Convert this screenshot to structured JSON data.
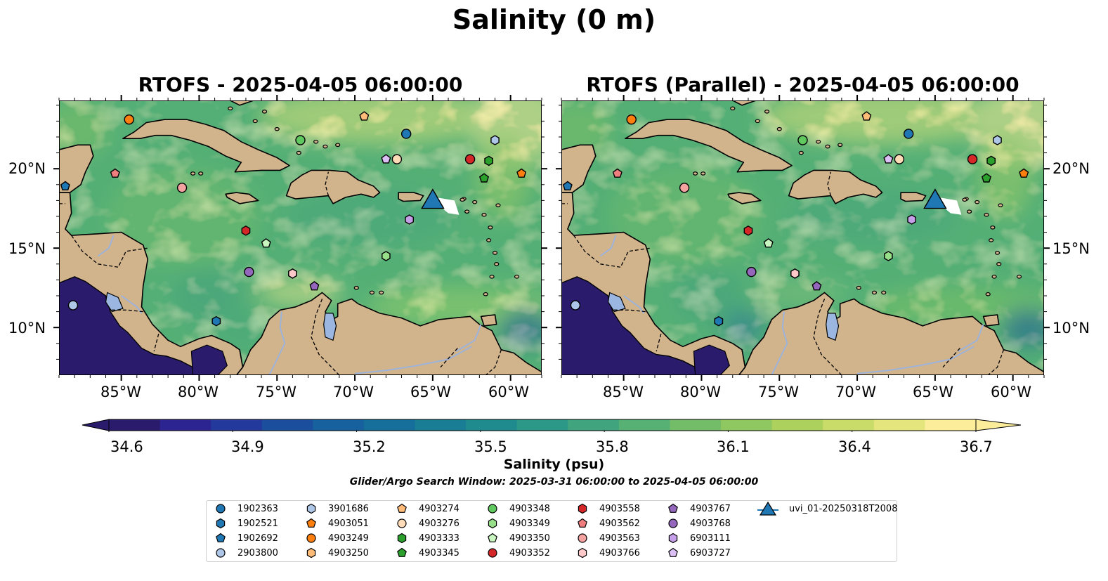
{
  "figure": {
    "title": "Salinity (0 m)",
    "panels": [
      {
        "title": "RTOFS - 2025-04-05 06:00:00"
      },
      {
        "title": "RTOFS (Parallel) - 2025-04-05 06:00:00"
      }
    ],
    "x_ticks": [
      "85°W",
      "80°W",
      "75°W",
      "70°W",
      "65°W",
      "60°W"
    ],
    "y_ticks": [
      "20°N",
      "15°N",
      "10°N"
    ],
    "search_window": "Glider/Argo Search Window: 2025-03-31 06:00:00 to 2025-04-05 06:00:00"
  },
  "colorbar": {
    "label": "Salinity (psu)",
    "ticks": [
      "34.6",
      "34.9",
      "35.2",
      "35.5",
      "35.8",
      "36.1",
      "36.4",
      "36.7"
    ],
    "min": 34.6,
    "max": 36.7,
    "colors": [
      "#2a1b6c",
      "#2c2490",
      "#23399b",
      "#1b4f9e",
      "#17619e",
      "#156f9a",
      "#187d95",
      "#208b8f",
      "#2c9988",
      "#40a57e",
      "#57b174",
      "#73bd68",
      "#8fc760",
      "#acd15c",
      "#c9db68",
      "#e5e57e",
      "#fbed9a"
    ]
  },
  "map_colors": {
    "land": "#d2b48c",
    "water_low": "#2a1b6c",
    "water_mid": "#4caa7a",
    "water_high": "#fbed9a"
  },
  "legend": [
    {
      "id": "1902363",
      "marker": "circle",
      "color": "#1f77b4"
    },
    {
      "id": "1902521",
      "marker": "hexagon",
      "color": "#1f77b4"
    },
    {
      "id": "1902692",
      "marker": "pentagon",
      "color": "#1f77b4"
    },
    {
      "id": "2903800",
      "marker": "circle",
      "color": "#aec7e8"
    },
    {
      "id": "3901686",
      "marker": "hexagon",
      "color": "#aec7e8"
    },
    {
      "id": "4903051",
      "marker": "pentagon",
      "color": "#ff7f0e"
    },
    {
      "id": "4903249",
      "marker": "circle",
      "color": "#ff7f0e"
    },
    {
      "id": "4903250",
      "marker": "hexagon",
      "color": "#ffbb78"
    },
    {
      "id": "4903274",
      "marker": "pentagon",
      "color": "#ffbb78"
    },
    {
      "id": "4903276",
      "marker": "circle",
      "color": "#ffdcb8"
    },
    {
      "id": "4903333",
      "marker": "hexagon",
      "color": "#2ca02c"
    },
    {
      "id": "4903345",
      "marker": "pentagon",
      "color": "#2ca02c"
    },
    {
      "id": "4903348",
      "marker": "circle",
      "color": "#5fc85f"
    },
    {
      "id": "4903349",
      "marker": "hexagon",
      "color": "#98df8a"
    },
    {
      "id": "4903350",
      "marker": "pentagon",
      "color": "#c8f5c0"
    },
    {
      "id": "4903352",
      "marker": "circle",
      "color": "#d62728"
    },
    {
      "id": "4903558",
      "marker": "hexagon",
      "color": "#d62728"
    },
    {
      "id": "4903562",
      "marker": "pentagon",
      "color": "#ef7f7f"
    },
    {
      "id": "4903563",
      "marker": "circle",
      "color": "#f4a3a0"
    },
    {
      "id": "4903766",
      "marker": "hexagon",
      "color": "#ffc9c9"
    },
    {
      "id": "4903767",
      "marker": "pentagon",
      "color": "#9467bd"
    },
    {
      "id": "4903768",
      "marker": "circle",
      "color": "#9467bd"
    },
    {
      "id": "6903111",
      "marker": "hexagon",
      "color": "#c5a0e8"
    },
    {
      "id": "6903727",
      "marker": "pentagon",
      "color": "#dcc0f5"
    },
    {
      "id": "uvi_01-20250318T2008",
      "marker": "triangle",
      "color": "#1f77b4"
    }
  ],
  "observations": [
    {
      "id": "1902363",
      "lon": -66.7,
      "lat": 22.2
    },
    {
      "id": "1902521",
      "lon": -78.9,
      "lat": 10.4
    },
    {
      "id": "1902692",
      "lon": -88.6,
      "lat": 18.9
    },
    {
      "id": "2903800",
      "lon": -88.1,
      "lat": 11.4
    },
    {
      "id": "3901686",
      "lon": -61.0,
      "lat": 21.8
    },
    {
      "id": "4903051",
      "lon": -59.3,
      "lat": 19.7
    },
    {
      "id": "4903249",
      "lon": -84.5,
      "lat": 23.1
    },
    {
      "id": "4903250",
      "lon": -74.0,
      "lat": 13.4
    },
    {
      "id": "4903274",
      "lon": -69.4,
      "lat": 23.3
    },
    {
      "id": "4903276",
      "lon": -67.3,
      "lat": 20.6
    },
    {
      "id": "4903333",
      "lon": -61.4,
      "lat": 20.5
    },
    {
      "id": "4903345",
      "lon": -61.7,
      "lat": 19.4
    },
    {
      "id": "4903348",
      "lon": -73.5,
      "lat": 21.8
    },
    {
      "id": "4903349",
      "lon": -68.0,
      "lat": 14.5
    },
    {
      "id": "4903350",
      "lon": -75.7,
      "lat": 15.3
    },
    {
      "id": "4903352",
      "lon": -62.6,
      "lat": 20.6
    },
    {
      "id": "4903558",
      "lon": -77.0,
      "lat": 16.1
    },
    {
      "id": "4903562",
      "lon": -85.4,
      "lat": 19.7
    },
    {
      "id": "4903563",
      "lon": -81.1,
      "lat": 18.8
    },
    {
      "id": "4903766",
      "lon": -74.0,
      "lat": 13.4
    },
    {
      "id": "4903767",
      "lon": -72.6,
      "lat": 12.6
    },
    {
      "id": "4903768",
      "lon": -76.8,
      "lat": 13.5
    },
    {
      "id": "6903111",
      "lon": -66.5,
      "lat": 16.8
    },
    {
      "id": "6903727",
      "lon": -68.0,
      "lat": 20.6
    },
    {
      "id": "uvi_01-20250318T2008",
      "lon": -65.0,
      "lat": 17.9
    }
  ]
}
